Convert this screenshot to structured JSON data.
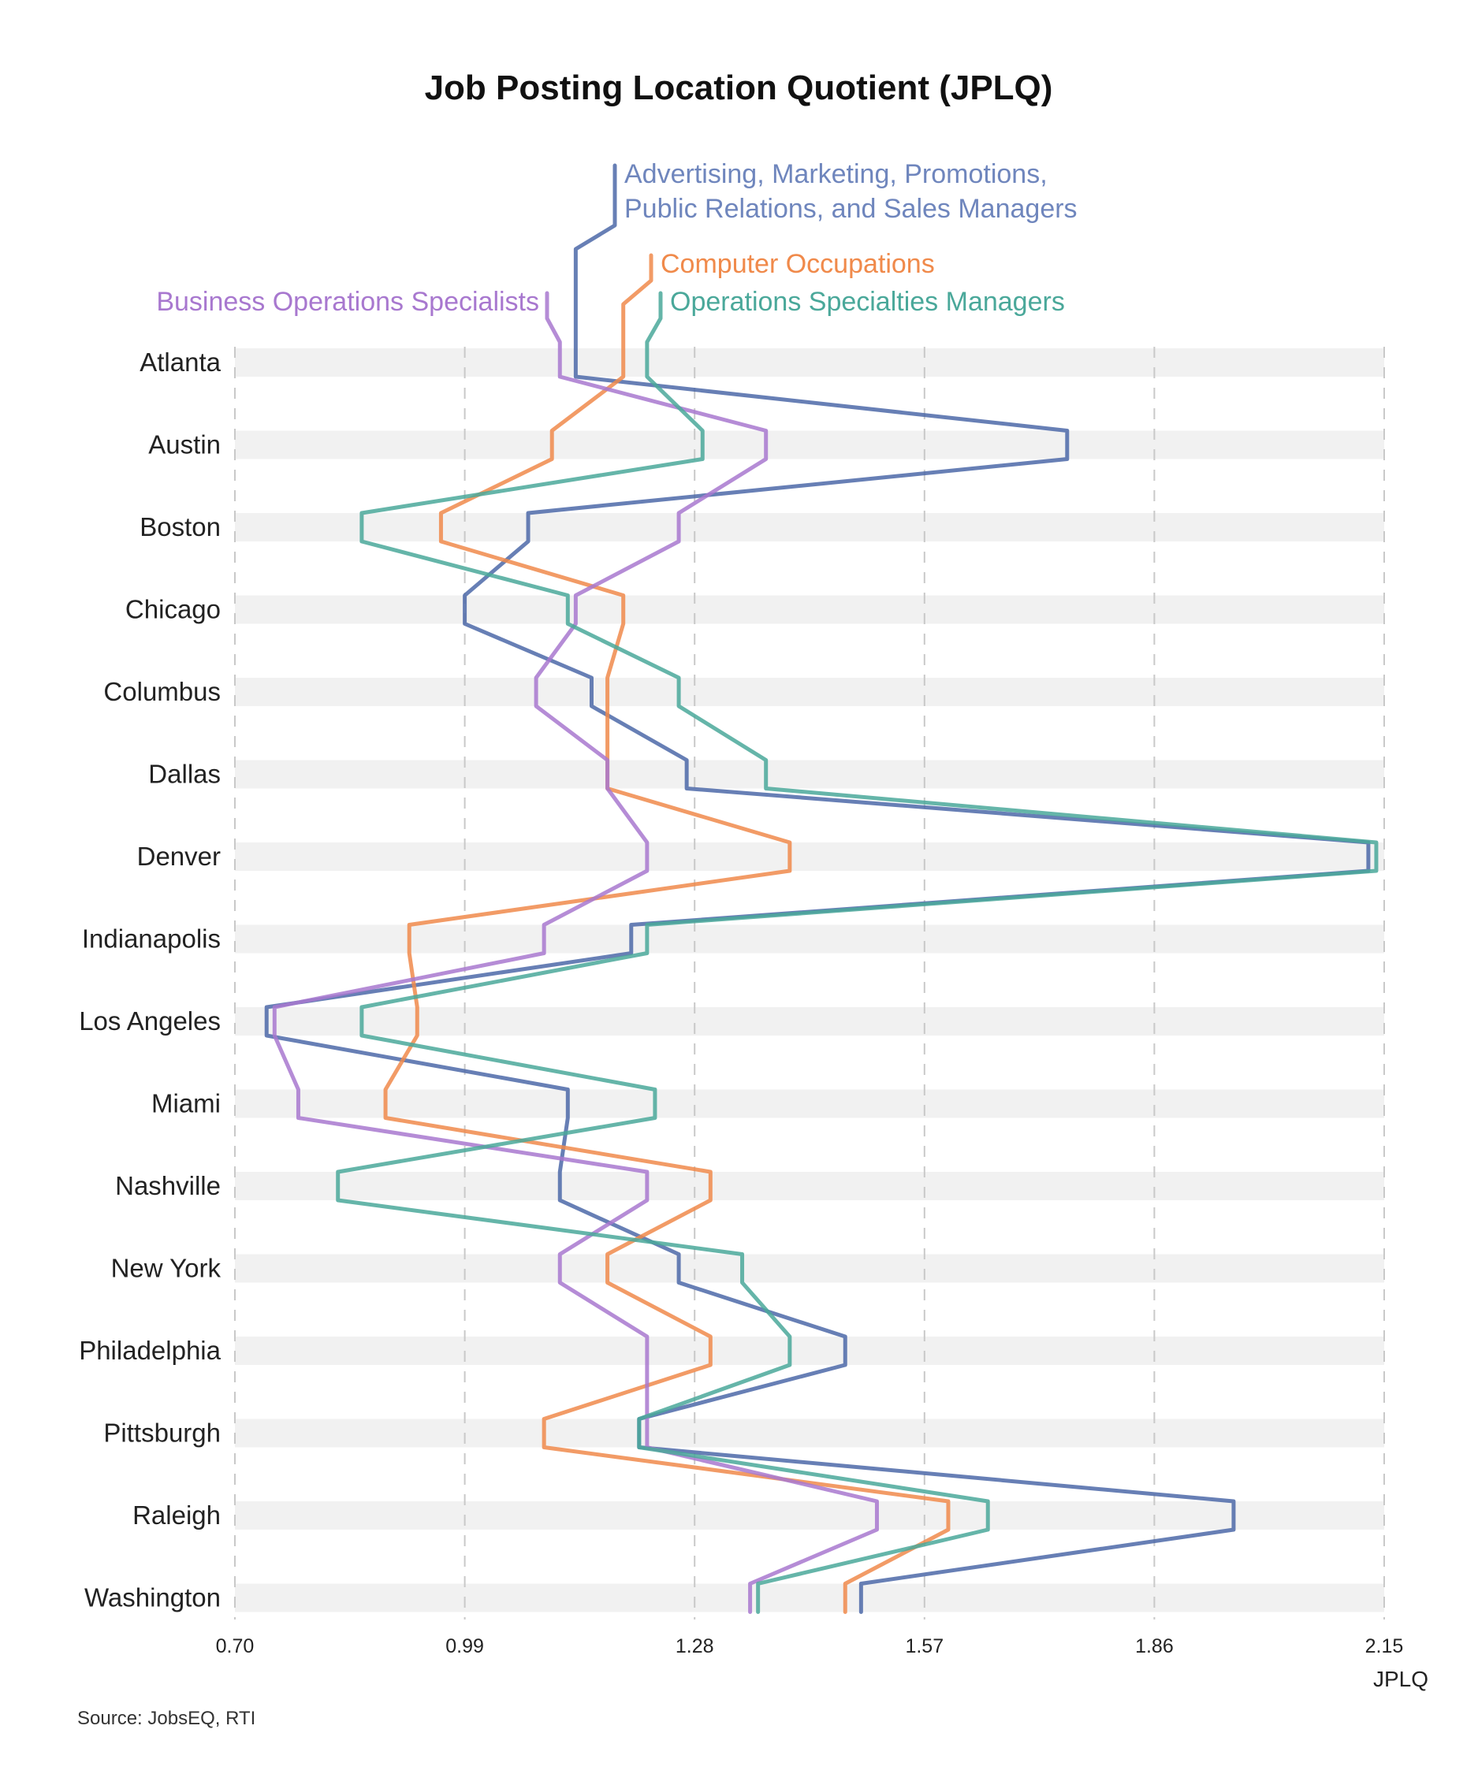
{
  "chart_data": {
    "type": "line",
    "orientation": "horizontal-profile",
    "title": "Job Posting Location Quotient (JPLQ)",
    "xlabel": "JPLQ",
    "ylabel": "",
    "xlim": [
      0.7,
      2.15
    ],
    "xticks": [
      "0.70",
      "0.99",
      "1.28",
      "1.57",
      "1.86",
      "2.15"
    ],
    "grid": "vertical dashed",
    "legend": "top, labels at series start",
    "categories": [
      "Atlanta",
      "Austin",
      "Boston",
      "Chicago",
      "Columbus",
      "Dallas",
      "Denver",
      "Indianapolis",
      "Los Angeles",
      "Miami",
      "Nashville",
      "New York",
      "Philadelphia",
      "Pittsburgh",
      "Raleigh",
      "Washington"
    ],
    "series": [
      {
        "name": "Advertising, Marketing, Promotions, Public Relations, and Sales Managers",
        "legend_lines": [
          "Advertising, Marketing, Promotions,",
          "Public Relations, and Sales Managers"
        ],
        "color": "#4c68a8",
        "legend_text_color": "#6f86bd",
        "values": [
          1.13,
          1.75,
          1.07,
          0.99,
          1.15,
          1.27,
          2.13,
          1.2,
          0.74,
          1.12,
          1.11,
          1.26,
          1.47,
          1.21,
          1.96,
          1.49
        ]
      },
      {
        "name": "Computer Occupations",
        "legend_lines": [
          "Computer Occupations"
        ],
        "color": "#f08a4b",
        "legend_text_color": "#f08a4b",
        "values": [
          1.19,
          1.1,
          0.96,
          1.19,
          1.17,
          1.17,
          1.4,
          0.92,
          0.93,
          0.89,
          1.3,
          1.17,
          1.3,
          1.09,
          1.6,
          1.47
        ]
      },
      {
        "name": "Business Operations Specialists",
        "legend_lines": [
          "Business Operations Specialists"
        ],
        "color": "#a878cf",
        "legend_text_color": "#a878cf",
        "values": [
          1.11,
          1.37,
          1.26,
          1.13,
          1.08,
          1.17,
          1.22,
          1.09,
          0.75,
          0.78,
          1.22,
          1.11,
          1.22,
          1.22,
          1.51,
          1.35
        ]
      },
      {
        "name": "Operations Specialties Managers",
        "legend_lines": [
          "Operations Specialties Managers"
        ],
        "color": "#4aa89a",
        "legend_text_color": "#4aa89a",
        "values": [
          1.22,
          1.29,
          0.86,
          1.12,
          1.26,
          1.37,
          2.14,
          1.22,
          0.86,
          1.23,
          0.83,
          1.34,
          1.4,
          1.21,
          1.65,
          1.36
        ]
      }
    ],
    "source": "Source: JobsEQ, RTI"
  }
}
